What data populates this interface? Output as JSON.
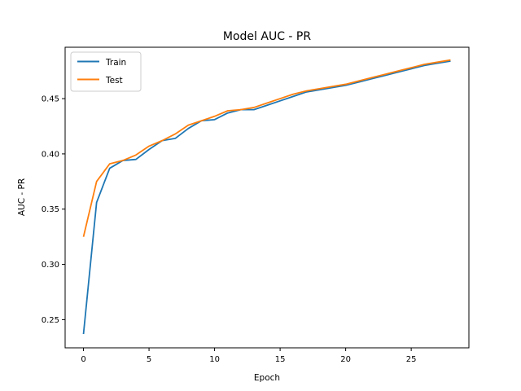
{
  "chart_data": {
    "type": "line",
    "title": "Model AUC - PR",
    "xlabel": "Epoch",
    "ylabel": "AUC - PR",
    "xlim": [
      -1.4,
      29.4
    ],
    "ylim": [
      0.2245,
      0.4965
    ],
    "xticks": [
      0,
      5,
      10,
      15,
      20,
      25
    ],
    "xtick_labels": [
      "0",
      "5",
      "10",
      "15",
      "20",
      "25"
    ],
    "yticks": [
      0.25,
      0.3,
      0.35,
      0.4,
      0.45
    ],
    "ytick_labels": [
      "0.25",
      "0.30",
      "0.35",
      "0.40",
      "0.45"
    ],
    "grid": false,
    "legend_position": "upper-left",
    "x": [
      0,
      1,
      2,
      3,
      4,
      5,
      6,
      7,
      8,
      9,
      10,
      11,
      12,
      13,
      14,
      15,
      16,
      17,
      18,
      19,
      20,
      21,
      22,
      23,
      24,
      25,
      26,
      27,
      28
    ],
    "series": [
      {
        "name": "Train",
        "color": "#1f77b4",
        "values": [
          0.237,
          0.356,
          0.387,
          0.394,
          0.395,
          0.404,
          0.412,
          0.414,
          0.423,
          0.43,
          0.431,
          0.437,
          0.44,
          0.44,
          0.444,
          0.448,
          0.452,
          0.456,
          0.458,
          0.46,
          0.462,
          0.465,
          0.468,
          0.471,
          0.474,
          0.477,
          0.48,
          0.482,
          0.484
        ]
      },
      {
        "name": "Test",
        "color": "#ff7f0e",
        "values": [
          0.325,
          0.375,
          0.391,
          0.394,
          0.399,
          0.407,
          0.412,
          0.418,
          0.426,
          0.43,
          0.434,
          0.439,
          0.44,
          0.442,
          0.446,
          0.45,
          0.454,
          0.457,
          0.459,
          0.461,
          0.463,
          0.466,
          0.469,
          0.472,
          0.475,
          0.478,
          0.481,
          0.483,
          0.485
        ]
      }
    ]
  }
}
